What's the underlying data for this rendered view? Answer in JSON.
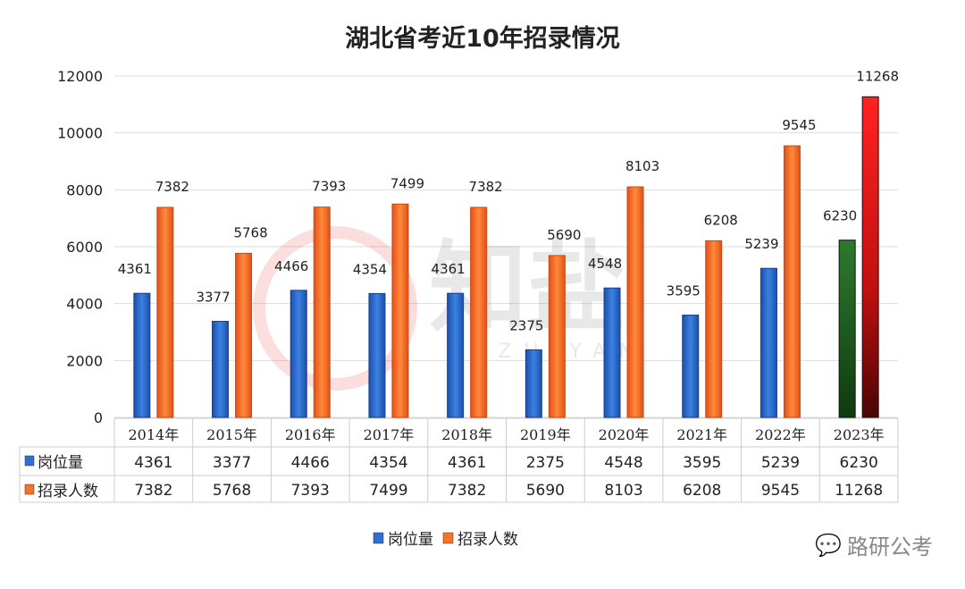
{
  "chart_data": {
    "type": "bar",
    "title": "湖北省考近10年招录情况",
    "categories": [
      "2014年",
      "2015年",
      "2016年",
      "2017年",
      "2018年",
      "2019年",
      "2020年",
      "2021年",
      "2022年",
      "2023年"
    ],
    "series": [
      {
        "name": "岗位量",
        "values": [
          4361,
          3377,
          4466,
          4354,
          4361,
          2375,
          4548,
          3595,
          5239,
          6230
        ],
        "color": "#2f6fd0",
        "highlight_color": "#1e5a1e"
      },
      {
        "name": "招录人数",
        "values": [
          7382,
          5768,
          7393,
          7499,
          7382,
          5690,
          8103,
          6208,
          9545,
          11268
        ],
        "color": "#f4742a",
        "highlight_color": "#ff2020"
      }
    ],
    "yticks": [
      0,
      2000,
      4000,
      6000,
      8000,
      10000,
      12000
    ],
    "ylim": [
      0,
      12000
    ],
    "grid": true,
    "legend": "bottom-center",
    "data_table": true
  },
  "watermark": {
    "text": "路研公考",
    "logo_text": "知盐",
    "logo_sub": "ZHIYAN"
  }
}
